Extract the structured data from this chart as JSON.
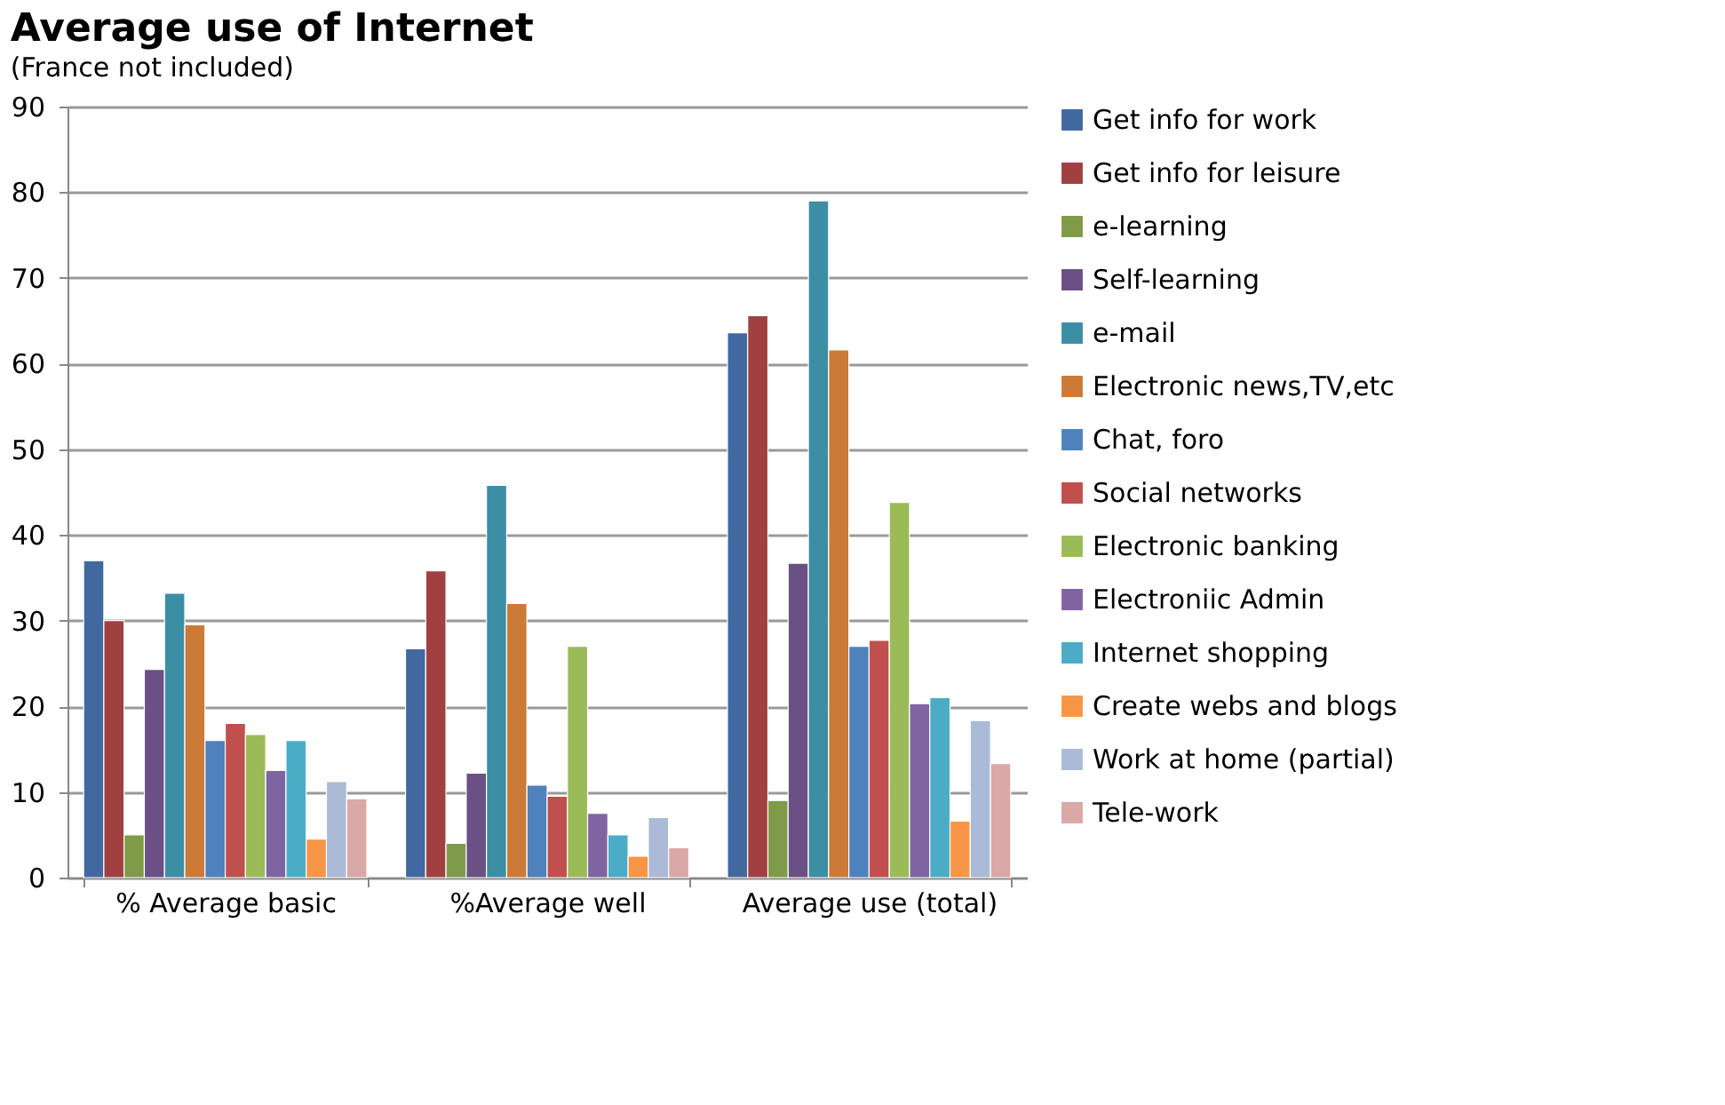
{
  "chart_data": {
    "type": "bar",
    "title": "Average use of Internet",
    "subtitle": "(France not included)",
    "categories": [
      "% Average basic",
      "%Average well",
      "Average use (total)"
    ],
    "ylim": [
      0,
      90
    ],
    "yticks": [
      0,
      10,
      20,
      30,
      40,
      50,
      60,
      70,
      80,
      90
    ],
    "grid": "y",
    "legend": "right",
    "series": [
      {
        "name": "Get info for work",
        "color": "#4169a0",
        "values": [
          37,
          26.7,
          63.6
        ]
      },
      {
        "name": "Get info for leisure",
        "color": "#a04040",
        "values": [
          30,
          35.8,
          65.6
        ]
      },
      {
        "name": "e-learning",
        "color": "#7f9a48",
        "values": [
          5,
          4,
          9
        ]
      },
      {
        "name": "Self-learning",
        "color": "#6a5085",
        "values": [
          24.3,
          12.2,
          36.7
        ]
      },
      {
        "name": "e-mail",
        "color": "#3c8ea5",
        "values": [
          33.2,
          45.8,
          79
        ]
      },
      {
        "name": "Electronic news,TV,etc",
        "color": "#cc7a38",
        "values": [
          29.5,
          32,
          61.6
        ]
      },
      {
        "name": "Chat, foro",
        "color": "#4f81bd",
        "values": [
          16,
          10.8,
          27
        ]
      },
      {
        "name": "Social networks",
        "color": "#c0504d",
        "values": [
          18,
          9.5,
          27.7
        ]
      },
      {
        "name": "Electronic banking",
        "color": "#9bbb59",
        "values": [
          16.7,
          27,
          43.8
        ]
      },
      {
        "name": "Electroniic  Admin",
        "color": "#8064a2",
        "values": [
          12.5,
          7.5,
          20.3
        ]
      },
      {
        "name": "Internet shopping",
        "color": "#4bacc6",
        "values": [
          16,
          5,
          21
        ]
      },
      {
        "name": "Create webs and blogs",
        "color": "#f79646",
        "values": [
          4.5,
          2.5,
          6.6
        ]
      },
      {
        "name": "Work at home  (partial)",
        "color": "#aabad7",
        "values": [
          11.2,
          7,
          18.3
        ]
      },
      {
        "name": "Tele-work",
        "color": "#d9a8a7",
        "values": [
          9.2,
          3.5,
          13.3
        ]
      }
    ]
  }
}
